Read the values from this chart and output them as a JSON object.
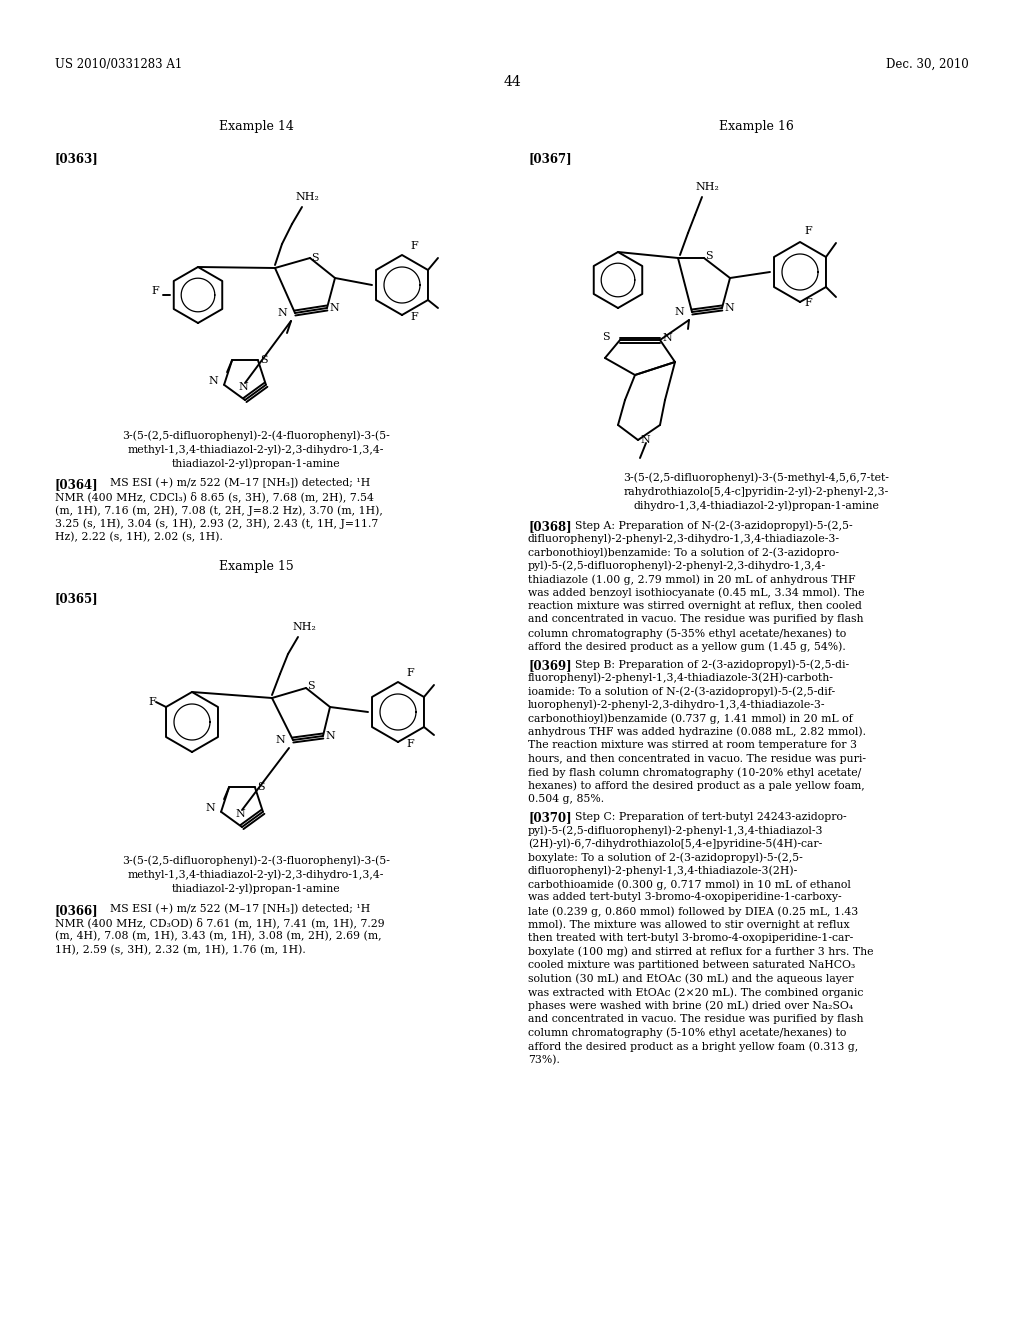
{
  "background_color": "#ffffff",
  "header_left": "US 2010/0331283 A1",
  "header_right": "Dec. 30, 2010",
  "page_number": "44",
  "example14_label": "Example 14",
  "example15_label": "Example 15",
  "example16_label": "Example 16",
  "para0363": "[0363]",
  "para0364_label": "[0364]",
  "para0364_text": "MS ESI (+) m/z 522 (M–17 [NH₃]) detected; ¹H NMR (400 MHz, CDCl₃) δ 8.65 (s, 3H), 7.68 (m, 2H), 7.54 (m, 1H), 7.16 (m, 2H), 7.08 (t, 2H, J=8.2 Hz), 3.70 (m, 1H), 3.25 (s, 1H), 3.04 (s, 1H), 2.93 (2, 3H), 2.43 (t, 1H, J=11.7 Hz), 2.22 (s, 1H), 2.02 (s, 1H).",
  "compound14_name_lines": [
    "3-(5-(2,5-difluorophenyl)-2-(4-fluorophenyl)-3-(5-",
    "methyl-1,3,4-thiadiazol-2-yl)-2,3-dihydro-1,3,4-",
    "thiadiazol-2-yl)propan-1-amine"
  ],
  "para0365": "[0365]",
  "para0366_label": "[0366]",
  "para0366_text": "MS ESI (+) m/z 522 (M–17 [NH₃]) detected; ¹H NMR (400 MHz, CD₃OD) δ 7.61 (m, 1H), 7.41 (m, 1H), 7.29 (m, 4H), 7.08 (m, 1H), 3.43 (m, 1H), 3.08 (m, 2H), 2.69 (m, 1H), 2.59 (s, 3H), 2.32 (m, 1H), 1.76 (m, 1H).",
  "compound15_name_lines": [
    "3-(5-(2,5-difluorophenyl)-2-(3-fluorophenyl)-3-(5-",
    "methyl-1,3,4-thiadiazol-2-yl)-2,3-dihydro-1,3,4-",
    "thiadiazol-2-yl)propan-1-amine"
  ],
  "para0367": "[0367]",
  "compound16_name_lines": [
    "3-(5-(2,5-difluorophenyl)-3-(5-methyl-4,5,6,7-tet-",
    "rahydrothiazolo[5,4-c]pyridin-2-yl)-2-phenyl-2,3-",
    "dihydro-1,3,4-thiadiazol-2-yl)propan-1-amine"
  ],
  "para0368_label": "[0368]",
  "para0368_lines": [
    "Step A: Preparation of N-(2-(3-azidopropyl)-5-(2,5-",
    "difluorophenyl)-2-phenyl-2,3-dihydro-1,3,4-thiadiazole-3-",
    "carbonothioyl)benzamide: To a solution of 2-(3-azidopro-",
    "pyl)-5-(2,5-difluorophenyl)-2-phenyl-2,3-dihydro-1,3,4-",
    "thiadiazole (1.00 g, 2.79 mmol) in 20 mL of anhydrous THF",
    "was added benzoyl isothiocyanate (0.45 mL, 3.34 mmol). The",
    "reaction mixture was stirred overnight at reflux, then cooled",
    "and concentrated in vacuo. The residue was purified by flash",
    "column chromatography (5-35% ethyl acetate/hexanes) to",
    "afford the desired product as a yellow gum (1.45 g, 54%)."
  ],
  "para0369_label": "[0369]",
  "para0369_lines": [
    "Step B: Preparation of 2-(3-azidopropyl)-5-(2,5-di-",
    "fluorophenyl)-2-phenyl-1,3,4-thiadiazole-3(2H)-carboth-",
    "ioamide: To a solution of N-(2-(3-azidopropyl)-5-(2,5-dif-",
    "luorophenyl)-2-phenyl-2,3-dihydro-1,3,4-thiadiazole-3-",
    "carbonothioyl)benzamide (0.737 g, 1.41 mmol) in 20 mL of",
    "anhydrous THF was added hydrazine (0.088 mL, 2.82 mmol).",
    "The reaction mixture was stirred at room temperature for 3",
    "hours, and then concentrated in vacuo. The residue was puri-",
    "fied by flash column chromatography (10-20% ethyl acetate/",
    "hexanes) to afford the desired product as a pale yellow foam,",
    "0.504 g, 85%."
  ],
  "para0370_label": "[0370]",
  "para0370_lines": [
    "Step C: Preparation of tert-butyl 24243-azidopro-",
    "pyl)-5-(2,5-difluorophenyl)-2-phenyl-1,3,4-thiadiazol-3",
    "(2H)-yl)-6,7-dihydrothiazolo[5,4-e]pyridine-5(4H)-car-",
    "boxylate: To a solution of 2-(3-azidopropyl)-5-(2,5-",
    "difluorophenyl)-2-phenyl-1,3,4-thiadiazole-3(2H)-",
    "carbothioamide (0.300 g, 0.717 mmol) in 10 mL of ethanol",
    "was added tert-butyl 3-bromo-4-oxopiperidine-1-carboxy-",
    "late (0.239 g, 0.860 mmol) followed by DIEA (0.25 mL, 1.43",
    "mmol). The mixture was allowed to stir overnight at reflux",
    "then treated with tert-butyl 3-bromo-4-oxopiperidine-1-car-",
    "boxylate (100 mg) and stirred at reflux for a further 3 hrs. The",
    "cooled mixture was partitioned between saturated NaHCO₃",
    "solution (30 mL) and EtOAc (30 mL) and the aqueous layer",
    "was extracted with EtOAc (2×20 mL). The combined organic",
    "phases were washed with brine (20 mL) dried over Na₂SO₄",
    "and concentrated in vacuo. The residue was purified by flash",
    "column chromatography (5-10% ethyl acetate/hexanes) to",
    "afford the desired product as a bright yellow foam (0.313 g,",
    "73%)."
  ]
}
